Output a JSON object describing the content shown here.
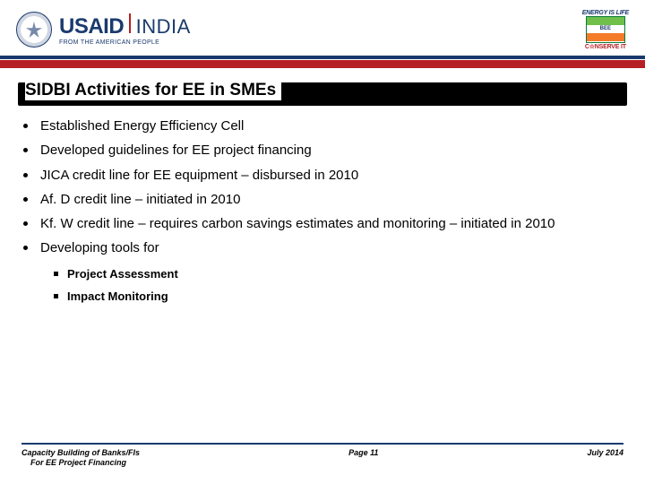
{
  "header": {
    "usaid_word": "USAID",
    "usaid_country": "INDIA",
    "usaid_sub": "FROM THE AMERICAN PEOPLE",
    "bee_top": "ENERGY IS LIFE",
    "bee_mid": "BEE",
    "bee_bot": "C☆NSERVE IT"
  },
  "colors": {
    "navy": "#1a3a6e",
    "red": "#b52025",
    "black": "#000000",
    "white": "#ffffff",
    "green": "#6fbf4a",
    "orange": "#f47b29"
  },
  "title": "SIDBI Activities  for EE in SMEs",
  "bullets": [
    "Established Energy Efficiency Cell",
    "Developed guidelines for EE project financing",
    "JICA credit line for EE equipment – disbursed in 2010",
    "Af. D credit line – initiated in 2010",
    "Kf. W credit line – requires carbon savings estimates and monitoring – initiated in 2010",
    "Developing tools for"
  ],
  "sub_bullets": [
    "Project Assessment",
    "Impact Monitoring"
  ],
  "footer": {
    "left_line1": "Capacity Building of Banks/FIs",
    "left_line2": "For EE Project Financing",
    "center": "Page 11",
    "right": "July 2014"
  },
  "typography": {
    "title_fontsize": 19,
    "bullet_fontsize": 15,
    "sub_bullet_fontsize": 13,
    "footer_fontsize": 9
  }
}
